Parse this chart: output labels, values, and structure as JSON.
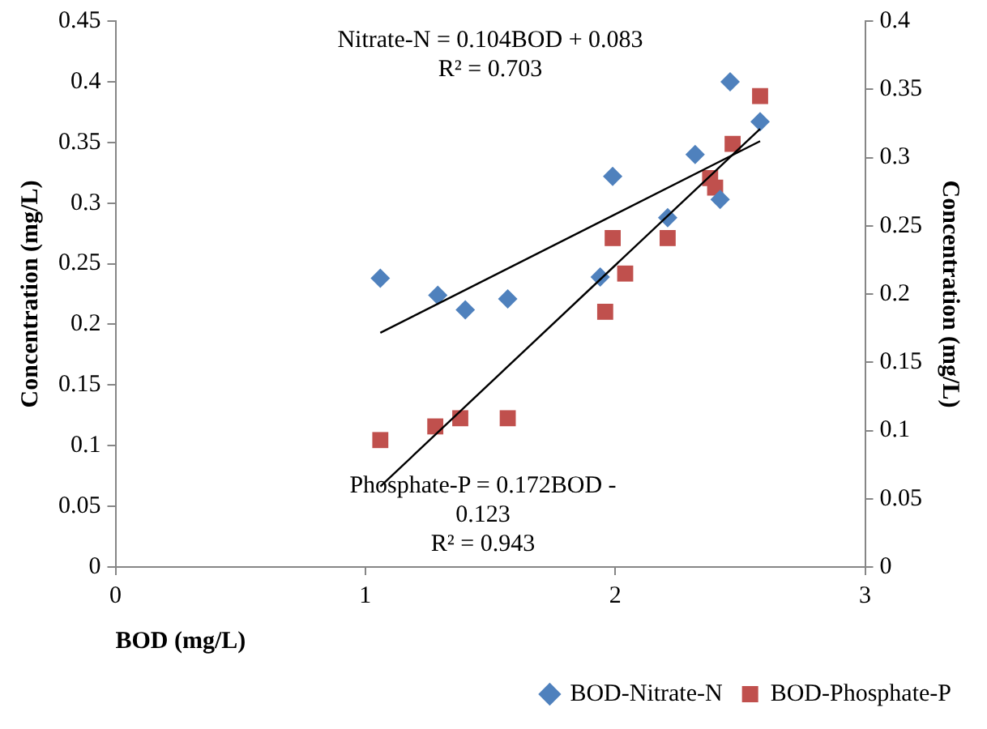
{
  "chart_data": {
    "type": "scatter",
    "xlabel": "BOD (mg/L)",
    "ylabel": "Concentration (mg/L)",
    "y2label": "Concentration (mg/L)",
    "xlim": [
      0,
      3
    ],
    "xticks": [
      0,
      1,
      2,
      3
    ],
    "ylim": [
      0,
      0.45
    ],
    "yticks": [
      0,
      0.05,
      0.1,
      0.15,
      0.2,
      0.25,
      0.3,
      0.35,
      0.4,
      0.45
    ],
    "y2lim": [
      0,
      0.4
    ],
    "y2ticks": [
      0,
      0.05,
      0.1,
      0.15,
      0.2,
      0.25,
      0.3,
      0.35,
      0.4
    ],
    "grid": false,
    "legend": "bottom right",
    "annotations": [
      "Nitrate-N = 0.104BOD + 0.083\nR² = 0.703",
      "Phosphate-P = 0.172BOD -\n0.123\nR² = 0.943"
    ],
    "series": [
      {
        "name": "BOD-Nitrate-N",
        "color": "#4f81bd",
        "marker": "diamond",
        "x": [
          1.06,
          1.29,
          1.4,
          1.57,
          1.94,
          1.99,
          2.21,
          2.32,
          2.42,
          2.46,
          2.58
        ],
        "values": [
          0.238,
          0.224,
          0.212,
          0.221,
          0.239,
          0.322,
          0.288,
          0.34,
          0.303,
          0.4,
          0.367
        ]
      },
      {
        "name": "BOD-Phosphate-P",
        "color": "#c0504d",
        "marker": "square",
        "axis": "y2",
        "x": [
          1.06,
          1.28,
          1.38,
          1.57,
          1.96,
          1.99,
          2.04,
          2.21,
          2.38,
          2.4,
          2.47,
          2.58
        ],
        "values": [
          0.093,
          0.103,
          0.109,
          0.109,
          0.187,
          0.241,
          0.215,
          0.241,
          0.285,
          0.278,
          0.31,
          0.345
        ]
      },
      {
        "type": "line",
        "color": "#000000",
        "marker": "none",
        "x": [
          1.06,
          2.58
        ],
        "values": [
          0.193,
          0.351
        ]
      },
      {
        "type": "line",
        "color": "#000000",
        "marker": "none",
        "axis": "y2",
        "x": [
          1.06,
          2.58
        ],
        "values": [
          0.059,
          0.321
        ]
      }
    ]
  }
}
